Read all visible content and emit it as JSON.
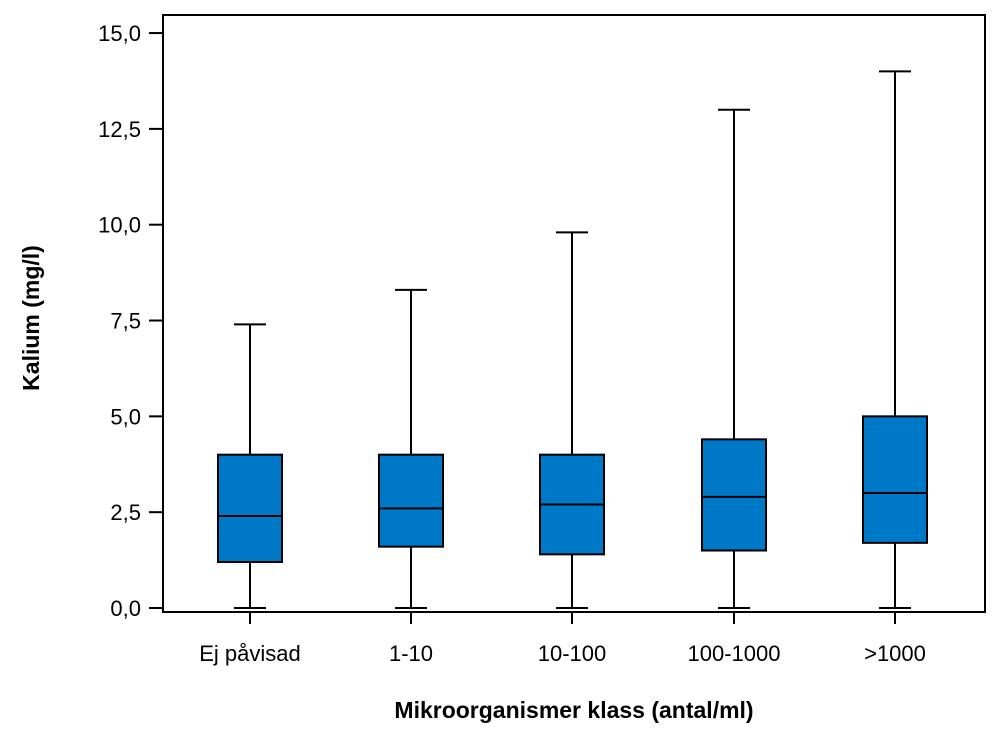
{
  "chart_data": {
    "type": "box",
    "title": "",
    "xlabel": "Mikroorganismer klass (antal/ml)",
    "ylabel": "Kalium (mg/l)",
    "ylim": [
      0,
      15
    ],
    "yticks": [
      "0,0",
      "2,5",
      "5,0",
      "7,5",
      "10,0",
      "12,5",
      "15,0"
    ],
    "ytick_values": [
      0,
      2.5,
      5,
      7.5,
      10,
      12.5,
      15
    ],
    "categories": [
      "Ej påvisad",
      "1-10",
      "10-100",
      "100-1000",
      ">1000"
    ],
    "boxes": [
      {
        "category": "Ej påvisad",
        "min": 0.0,
        "q1": 1.2,
        "median": 2.4,
        "q3": 4.0,
        "max": 7.4
      },
      {
        "category": "1-10",
        "min": 0.0,
        "q1": 1.6,
        "median": 2.6,
        "q3": 4.0,
        "max": 8.3
      },
      {
        "category": "10-100",
        "min": 0.0,
        "q1": 1.4,
        "median": 2.7,
        "q3": 4.0,
        "max": 9.8
      },
      {
        "category": "100-1000",
        "min": 0.0,
        "q1": 1.5,
        "median": 2.9,
        "q3": 4.4,
        "max": 13.0
      },
      {
        "category": ">1000",
        "min": 0.0,
        "q1": 1.7,
        "median": 3.0,
        "q3": 5.0,
        "max": 14.0
      }
    ],
    "box_color": "#0078c8",
    "grid": false,
    "legend": "none"
  }
}
